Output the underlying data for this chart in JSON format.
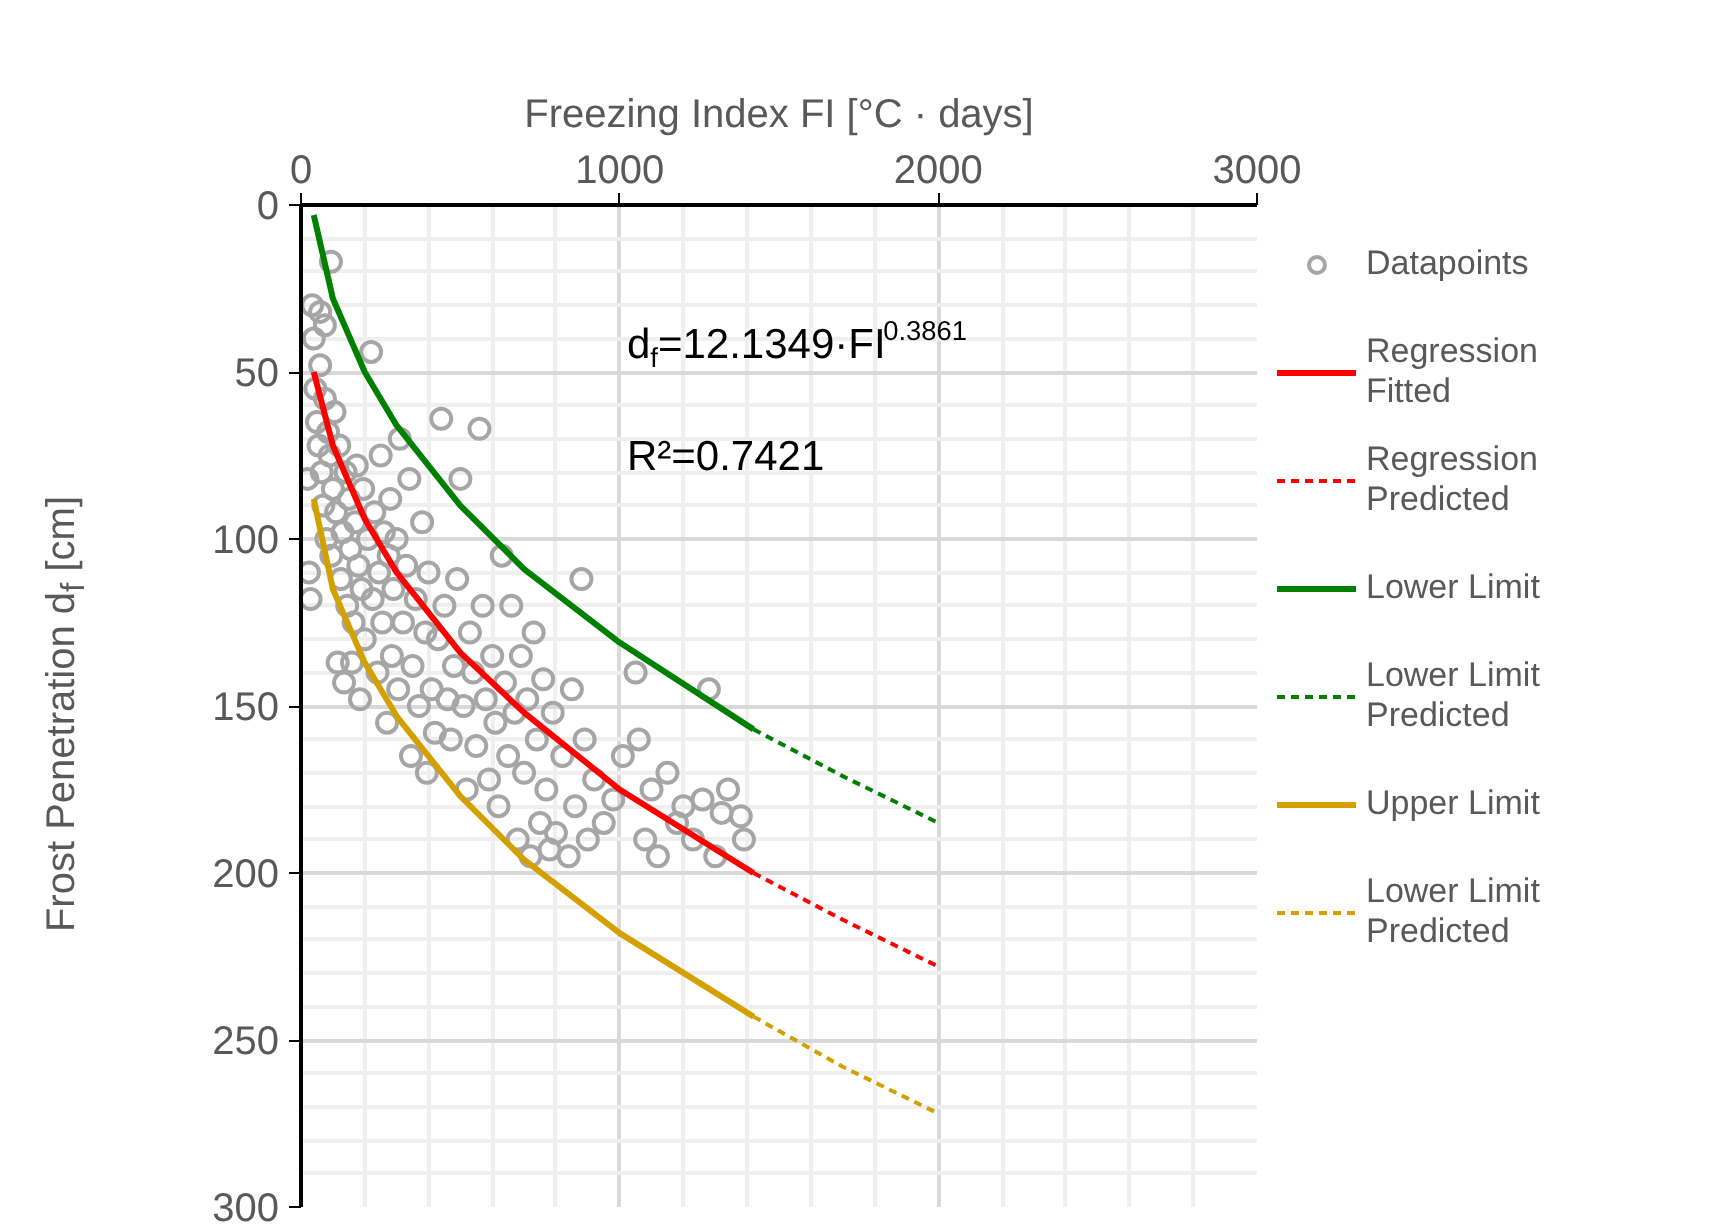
{
  "chart_data": {
    "type": "scatter",
    "xlabel": "Freezing Index FI [°C · days]",
    "ylabel": "Frost Penetration d$_{f}$ [cm]",
    "xlim": [
      0,
      3000
    ],
    "xticks": [
      0,
      1000,
      2000,
      3000
    ],
    "ylim": [
      300,
      0
    ],
    "yticks": [
      0,
      50,
      100,
      150,
      200,
      250,
      300
    ],
    "grid": true,
    "legend": "right",
    "annotations": [
      "d$_{f}$=12.1349·FI$^{0.3861}$",
      "R²=0.7421"
    ],
    "series": [
      {
        "name": "Datapoints",
        "type": "scatter",
        "marker": "circle",
        "color": "#a6a6a6",
        "x": [
          20,
          25,
          30,
          35,
          40,
          45,
          50,
          55,
          60,
          65,
          70,
          75,
          80,
          85,
          90,
          95,
          100,
          105,
          110,
          115,
          120,
          125,
          130,
          135,
          140,
          145,
          150,
          155,
          160,
          165,
          170,
          175,
          180,
          185,
          190,
          195,
          200,
          210,
          220,
          225,
          230,
          240,
          245,
          250,
          255,
          260,
          270,
          275,
          280,
          285,
          290,
          300,
          305,
          310,
          320,
          330,
          340,
          345,
          350,
          360,
          370,
          380,
          390,
          395,
          400,
          410,
          420,
          430,
          440,
          450,
          460,
          470,
          480,
          490,
          500,
          510,
          520,
          530,
          540,
          550,
          560,
          570,
          580,
          590,
          600,
          610,
          620,
          630,
          640,
          650,
          660,
          670,
          680,
          690,
          700,
          710,
          720,
          730,
          740,
          750,
          760,
          770,
          780,
          790,
          800,
          820,
          840,
          850,
          860,
          880,
          890,
          900,
          920,
          950,
          980,
          1010,
          1050,
          1060,
          1080,
          1100,
          1120,
          1150,
          1180,
          1200,
          1230,
          1260,
          1280,
          1300,
          1320,
          1340,
          1380,
          1390,
          94,
          60,
          75
        ],
        "values": [
          82,
          110,
          118,
          30,
          40,
          55,
          65,
          72,
          48,
          80,
          90,
          58,
          100,
          68,
          75,
          105,
          85,
          62,
          92,
          137,
          72,
          112,
          98,
          143,
          80,
          120,
          88,
          103,
          137,
          125,
          95,
          78,
          108,
          148,
          115,
          85,
          130,
          100,
          44,
          118,
          92,
          140,
          110,
          75,
          125,
          98,
          155,
          105,
          88,
          135,
          115,
          100,
          145,
          70,
          125,
          108,
          82,
          165,
          138,
          118,
          150,
          95,
          128,
          170,
          110,
          145,
          158,
          130,
          64,
          120,
          148,
          160,
          138,
          112,
          82,
          150,
          175,
          128,
          140,
          162,
          67,
          120,
          148,
          172,
          135,
          155,
          180,
          105,
          143,
          165,
          120,
          152,
          190,
          135,
          170,
          148,
          195,
          128,
          160,
          185,
          142,
          175,
          193,
          152,
          188,
          165,
          195,
          145,
          180,
          112,
          160,
          190,
          172,
          185,
          178,
          165,
          140,
          160,
          190,
          175,
          195,
          170,
          185,
          180,
          190,
          178,
          145,
          195,
          182,
          175,
          183,
          190,
          17,
          32,
          36
        ]
      },
      {
        "name": "Regression\nFitted",
        "type": "line",
        "line_style": "solid",
        "color": "#ff0000",
        "x": [
          40,
          100,
          200,
          300,
          500,
          700,
          1000,
          1420
        ],
        "values": [
          50,
          72,
          94,
          110,
          134,
          152,
          175,
          200
        ]
      },
      {
        "name": "Regression\nPredicted",
        "type": "line",
        "line_style": "dashed",
        "color": "#ff0000",
        "x": [
          1420,
          1700,
          2000
        ],
        "values": [
          200,
          214,
          228
        ]
      },
      {
        "name": "Lower Limit",
        "type": "line",
        "line_style": "solid",
        "color": "#008000",
        "x": [
          40,
          100,
          200,
          300,
          500,
          700,
          1000,
          1420
        ],
        "values": [
          3,
          28,
          50,
          66,
          90,
          109,
          131,
          157
        ]
      },
      {
        "name": "Lower Limit\nPredicted",
        "type": "line",
        "line_style": "dashed",
        "color": "#008000",
        "x": [
          1420,
          1700,
          2000
        ],
        "values": [
          157,
          171,
          185
        ]
      },
      {
        "name": "Upper Limit",
        "type": "line",
        "line_style": "solid",
        "color": "#d4a000",
        "x": [
          40,
          100,
          200,
          300,
          500,
          700,
          1000,
          1420
        ],
        "values": [
          88,
          115,
          137,
          153,
          177,
          196,
          218,
          243
        ]
      },
      {
        "name": "Lower Limit\nPredicted",
        "type": "line",
        "line_style": "dashed",
        "color": "#d4a000",
        "x": [
          1420,
          1700,
          2000
        ],
        "values": [
          243,
          258,
          272
        ]
      }
    ]
  }
}
